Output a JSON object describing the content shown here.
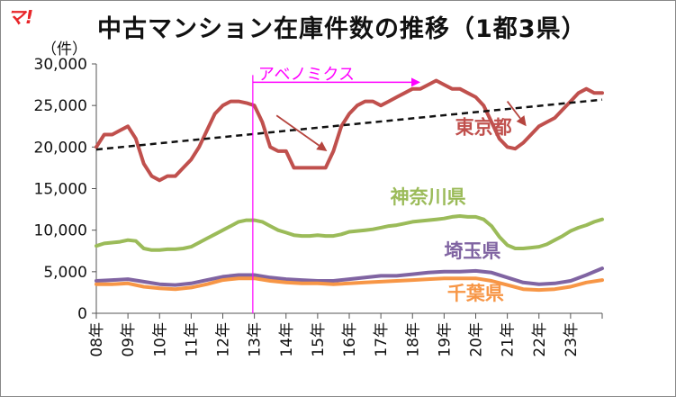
{
  "logo": "マ!",
  "title": "中古マンション在庫件数の推移（1都3県）",
  "unit_label": "（件）",
  "chart_data": {
    "type": "line",
    "title": "中古マンション在庫件数の推移（1都3県）",
    "ylabel": "（件）",
    "ylim": [
      0,
      30000
    ],
    "yticks": [
      "0",
      "5,000",
      "10,000",
      "15,000",
      "20,000",
      "25,000",
      "30,000"
    ],
    "categories": [
      "08年",
      "09年",
      "10年",
      "11年",
      "12年",
      "13年",
      "14年",
      "15年",
      "16年",
      "17年",
      "18年",
      "19年",
      "20年",
      "21年",
      "22年",
      "23年"
    ],
    "x_start": 2008.0,
    "x_end": 2024.0,
    "grid": false,
    "series": [
      {
        "name": "東京都",
        "color": "#c0504d",
        "x": [
          2008.0,
          2008.25,
          2008.5,
          2008.75,
          2009.0,
          2009.25,
          2009.5,
          2009.75,
          2010.0,
          2010.25,
          2010.5,
          2010.75,
          2011.0,
          2011.25,
          2011.5,
          2011.75,
          2012.0,
          2012.25,
          2012.5,
          2012.75,
          2013.0,
          2013.25,
          2013.5,
          2013.75,
          2014.0,
          2014.25,
          2014.5,
          2014.75,
          2015.0,
          2015.25,
          2015.5,
          2015.75,
          2016.0,
          2016.25,
          2016.5,
          2016.75,
          2017.0,
          2017.25,
          2017.5,
          2017.75,
          2018.0,
          2018.25,
          2018.5,
          2018.75,
          2019.0,
          2019.25,
          2019.5,
          2019.75,
          2020.0,
          2020.25,
          2020.5,
          2020.75,
          2021.0,
          2021.25,
          2021.5,
          2021.75,
          2022.0,
          2022.25,
          2022.5,
          2022.75,
          2023.0,
          2023.25,
          2023.5,
          2023.75,
          2024.0
        ],
        "values": [
          20000,
          21500,
          21500,
          22000,
          22500,
          21000,
          18000,
          16500,
          16000,
          16500,
          16500,
          17500,
          18500,
          20000,
          22000,
          24000,
          25000,
          25500,
          25500,
          25300,
          25000,
          23000,
          20000,
          19500,
          19500,
          17500,
          17500,
          17500,
          17500,
          17500,
          19500,
          22500,
          24000,
          25000,
          25500,
          25500,
          25000,
          25500,
          26000,
          26500,
          27000,
          27000,
          27500,
          28000,
          27500,
          27000,
          27000,
          26500,
          26000,
          25000,
          23000,
          21000,
          20000,
          19800,
          20500,
          21500,
          22500,
          23000,
          23500,
          24500,
          25500,
          26500,
          27000,
          26500,
          26500
        ]
      },
      {
        "name": "神奈川県",
        "color": "#9bbb59",
        "x": [
          2008.0,
          2008.25,
          2008.5,
          2008.75,
          2009.0,
          2009.25,
          2009.5,
          2009.75,
          2010.0,
          2010.25,
          2010.5,
          2010.75,
          2011.0,
          2011.25,
          2011.5,
          2011.75,
          2012.0,
          2012.25,
          2012.5,
          2012.75,
          2013.0,
          2013.25,
          2013.5,
          2013.75,
          2014.0,
          2014.25,
          2014.5,
          2014.75,
          2015.0,
          2015.25,
          2015.5,
          2015.75,
          2016.0,
          2016.25,
          2016.5,
          2016.75,
          2017.0,
          2017.25,
          2017.5,
          2017.75,
          2018.0,
          2018.25,
          2018.5,
          2018.75,
          2019.0,
          2019.25,
          2019.5,
          2019.75,
          2020.0,
          2020.25,
          2020.5,
          2020.75,
          2021.0,
          2021.25,
          2021.5,
          2021.75,
          2022.0,
          2022.25,
          2022.5,
          2022.75,
          2023.0,
          2023.25,
          2023.5,
          2023.75,
          2024.0
        ],
        "values": [
          8100,
          8400,
          8500,
          8600,
          8800,
          8700,
          7800,
          7600,
          7600,
          7700,
          7700,
          7800,
          8000,
          8500,
          9000,
          9500,
          10000,
          10500,
          11000,
          11200,
          11200,
          11000,
          10500,
          10000,
          9700,
          9400,
          9300,
          9300,
          9400,
          9300,
          9300,
          9500,
          9800,
          9900,
          10000,
          10100,
          10300,
          10500,
          10600,
          10800,
          11000,
          11100,
          11200,
          11300,
          11400,
          11600,
          11700,
          11600,
          11600,
          11300,
          10500,
          9200,
          8200,
          7800,
          7800,
          7900,
          8000,
          8300,
          8800,
          9300,
          9900,
          10300,
          10600,
          11000,
          11300
        ]
      },
      {
        "name": "埼玉県",
        "color": "#8064a2",
        "x": [
          2008.0,
          2008.5,
          2009.0,
          2009.5,
          2010.0,
          2010.5,
          2011.0,
          2011.5,
          2012.0,
          2012.5,
          2013.0,
          2013.5,
          2014.0,
          2014.5,
          2015.0,
          2015.5,
          2016.0,
          2016.5,
          2017.0,
          2017.5,
          2018.0,
          2018.5,
          2019.0,
          2019.5,
          2020.0,
          2020.5,
          2021.0,
          2021.5,
          2022.0,
          2022.5,
          2023.0,
          2023.5,
          2024.0
        ],
        "values": [
          3900,
          4000,
          4100,
          3800,
          3500,
          3400,
          3600,
          4000,
          4400,
          4600,
          4600,
          4300,
          4100,
          4000,
          3900,
          3900,
          4100,
          4300,
          4500,
          4500,
          4700,
          4900,
          5000,
          5000,
          5100,
          4900,
          4300,
          3700,
          3500,
          3600,
          3900,
          4600,
          5400
        ]
      },
      {
        "name": "千葉県",
        "color": "#f79646",
        "x": [
          2008.0,
          2008.5,
          2009.0,
          2009.5,
          2010.0,
          2010.5,
          2011.0,
          2011.5,
          2012.0,
          2012.5,
          2013.0,
          2013.5,
          2014.0,
          2014.5,
          2015.0,
          2015.5,
          2016.0,
          2016.5,
          2017.0,
          2017.5,
          2018.0,
          2018.5,
          2019.0,
          2019.5,
          2020.0,
          2020.5,
          2021.0,
          2021.5,
          2022.0,
          2022.5,
          2023.0,
          2023.5,
          2024.0
        ],
        "values": [
          3500,
          3500,
          3600,
          3200,
          3000,
          2900,
          3100,
          3500,
          4000,
          4200,
          4200,
          3900,
          3700,
          3600,
          3600,
          3500,
          3600,
          3700,
          3800,
          3900,
          4000,
          4100,
          4200,
          4200,
          4200,
          3900,
          3400,
          2900,
          2800,
          2900,
          3200,
          3700,
          4000
        ]
      }
    ],
    "trendline": {
      "x": [
        2008.0,
        2024.0
      ],
      "values": [
        19700,
        25700
      ],
      "color": "#111111",
      "style": "dashed"
    },
    "annotations": {
      "abenomics_label": "アベノミクス",
      "abenomics_start": 2012.95,
      "abenomics_arrow_end": 2018.25,
      "abenomics_y": 27800,
      "color": "#ff00ff"
    },
    "trend_arrows": [
      {
        "x": [
          2013.7,
          2015.3
        ],
        "values": [
          23800,
          19500
        ]
      },
      {
        "x": [
          2021.0,
          2021.6
        ],
        "values": [
          25500,
          22500
        ]
      }
    ],
    "series_labels": [
      {
        "text": "東京都",
        "x": 2019.35,
        "value": 21600,
        "color": "#c0504d"
      },
      {
        "text": "神奈川県",
        "x": 2017.3,
        "value": 13200,
        "color": "#9bbb59"
      },
      {
        "text": "埼玉県",
        "x": 2019.0,
        "value": 6700,
        "color": "#8064a2"
      },
      {
        "text": "千葉県",
        "x": 2019.1,
        "value": 1600,
        "color": "#f79646"
      }
    ]
  }
}
